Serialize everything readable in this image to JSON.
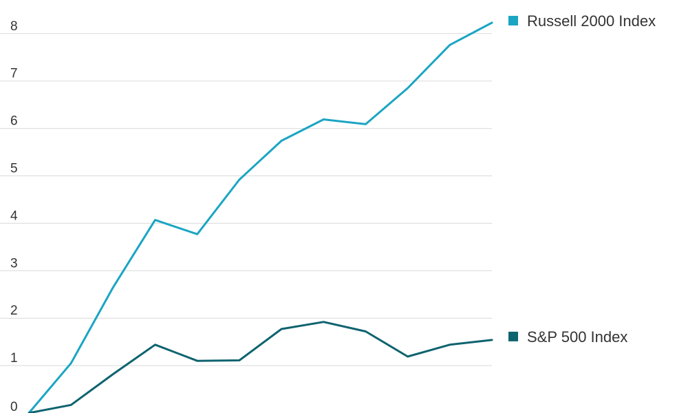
{
  "chart_data": {
    "type": "line",
    "title": "",
    "xlabel": "",
    "ylabel": "",
    "x": [
      0,
      1,
      2,
      3,
      4,
      5,
      6,
      7,
      8,
      9,
      10,
      11
    ],
    "ylim": [
      0,
      8.3
    ],
    "yticks": [
      0,
      1,
      2,
      3,
      4,
      5,
      6,
      7,
      8
    ],
    "ytick_labels": [
      "0",
      "1",
      "2",
      "3",
      "4",
      "5",
      "6",
      "7",
      "8"
    ],
    "grid": true,
    "legend": "right",
    "series": [
      {
        "name": "Russell 2000 Index",
        "color": "#1aa5c3",
        "values": [
          0.0,
          1.05,
          2.65,
          4.07,
          3.77,
          4.92,
          5.74,
          6.19,
          6.09,
          6.85,
          7.76,
          8.23
        ]
      },
      {
        "name": "S&P 500 Index",
        "color": "#0e636f",
        "values": [
          0.0,
          0.17,
          0.82,
          1.44,
          1.1,
          1.11,
          1.77,
          1.92,
          1.72,
          1.19,
          1.44,
          1.54
        ]
      }
    ]
  }
}
